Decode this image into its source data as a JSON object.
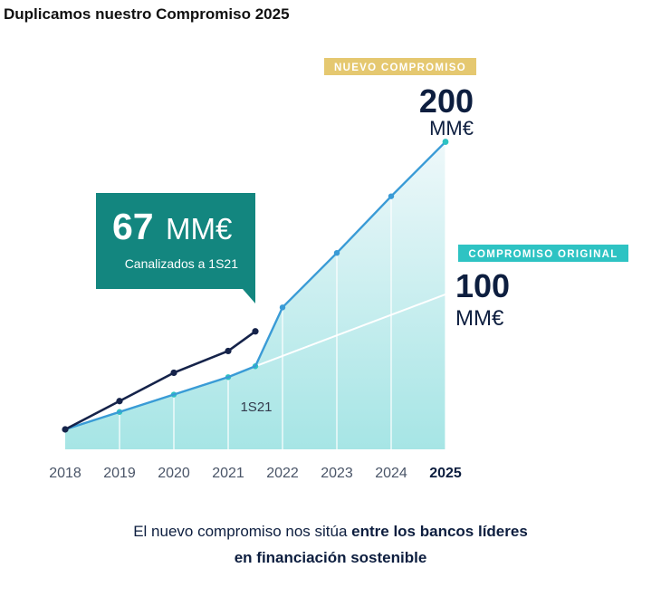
{
  "title": "Duplicamos nuestro Compromiso 2025",
  "colors": {
    "navy": "#15234a",
    "teal": "#2ec3c3",
    "blue": "#3a9bd6",
    "gold": "#e5c870",
    "callout_bg": "#13867f",
    "area_top": "#e9f6f8",
    "area_bottom": "#a6e5e5"
  },
  "callout": {
    "value": "67",
    "unit": "MM€",
    "sublabel": "Canalizados a 1S21"
  },
  "badges": {
    "new": "NUEVO COMPROMISO",
    "original": "COMPROMISO ORIGINAL"
  },
  "targets": {
    "new_value": "200",
    "new_unit": "MM€",
    "original_value": "100",
    "original_unit": "MM€"
  },
  "midpoint_label": "1S21",
  "caption": {
    "line1_normal": "El nuevo compromiso nos sitúa ",
    "line1_bold": "entre los bancos líderes",
    "line2_bold": "en financiación sostenible"
  },
  "chart_data": {
    "type": "line",
    "title": "Duplicamos nuestro Compromiso 2025",
    "x_ticks": [
      "2018",
      "2019",
      "2020",
      "2021",
      "2022",
      "2023",
      "2024",
      "2025"
    ],
    "series": [
      {
        "x": [
          2018,
          2019,
          2020,
          2021,
          2021.5
        ],
        "values": [
          0,
          13,
          26,
          36,
          45
        ],
        "color": "#15234a"
      },
      {
        "x": [
          2018,
          2019,
          2020,
          2021,
          2021.5,
          2022,
          2023,
          2024,
          2025
        ],
        "values": [
          0,
          8,
          16,
          24,
          29,
          56,
          81,
          107,
          132
        ],
        "color": "#3a9bd6"
      },
      {
        "x": [
          2018,
          2019,
          2020,
          2021,
          2021.5,
          2025
        ],
        "values": [
          0,
          8,
          16,
          24,
          29,
          62
        ],
        "color": "#2ec3c3"
      }
    ],
    "annotations": [
      "67 MM€",
      "Canalizados a 1S21",
      "1S21",
      "NUEVO COMPROMISO",
      "200 MM€",
      "COMPROMISO ORIGINAL",
      "100 MM€"
    ],
    "grid": "vertical"
  }
}
